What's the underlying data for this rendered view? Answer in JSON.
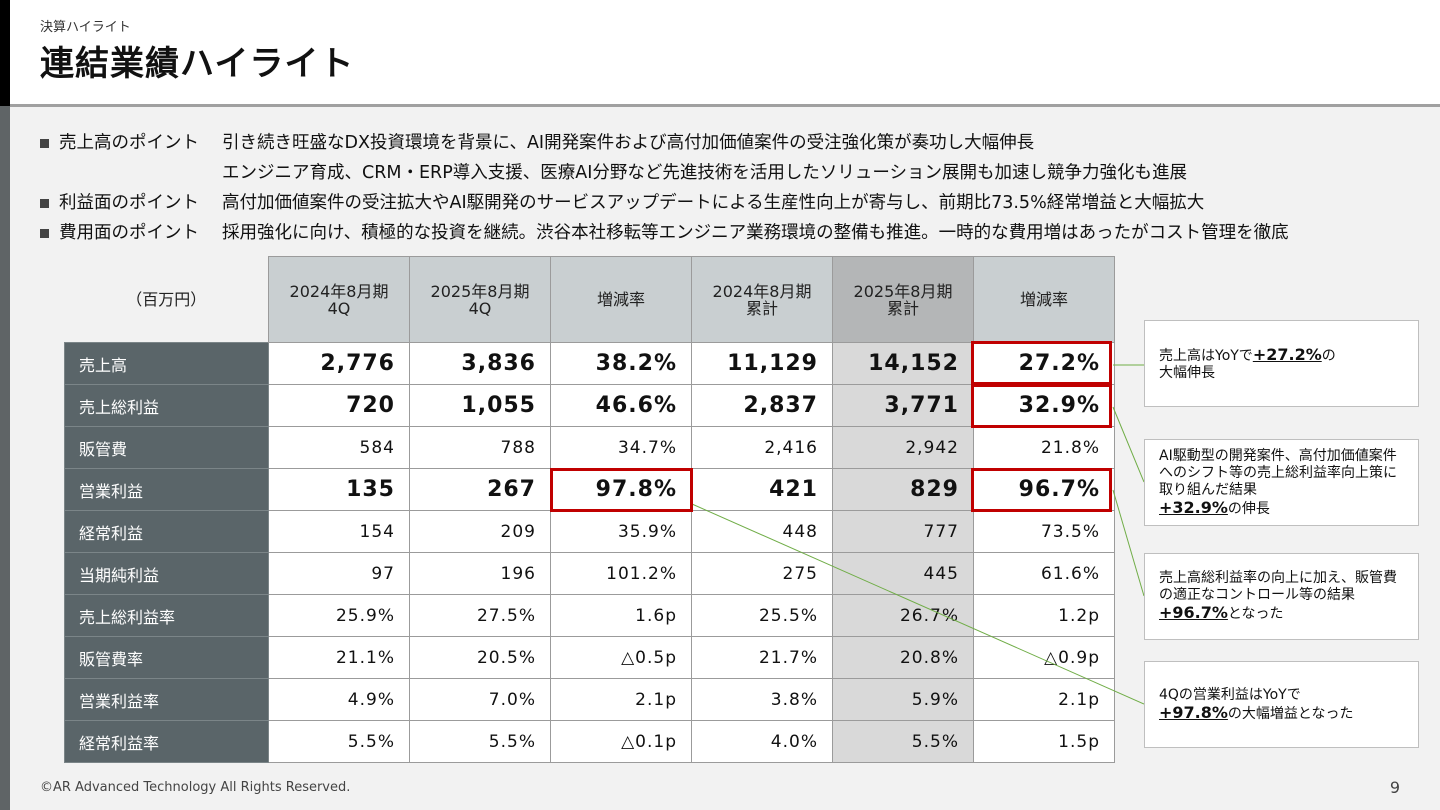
{
  "header": {
    "kicker": "決算ハイライト",
    "title": "連結業績ハイライト"
  },
  "points": [
    {
      "label": "売上高のポイント",
      "lines": [
        "引き続き旺盛なDX投資環境を背景に、AI開発案件および高付加価値案件の受注強化策が奏功し大幅伸長",
        "エンジニア育成、CRM・ERP導入支援、医療AI分野など先進技術を活用したソリューション展開も加速し競争力強化も進展"
      ]
    },
    {
      "label": "利益面のポイント",
      "lines": [
        "高付加価値案件の受注拡大やAI駆開発のサービスアップデートによる生産性向上が寄与し、前期比73.5%経常増益と大幅拡大"
      ]
    },
    {
      "label": "費用面のポイント",
      "lines": [
        "採用強化に向け、積極的な投資を継続。渋谷本社移転等エンジニア業務環境の整備も推進。一時的な費用増はあったがコスト管理を徹底"
      ]
    }
  ],
  "table": {
    "unit": "（百万円）",
    "columns": [
      {
        "line1": "2024年8月期",
        "line2": "4Q"
      },
      {
        "line1": "2025年8月期",
        "line2": "4Q"
      },
      {
        "line1": "増減率",
        "line2": ""
      },
      {
        "line1": "2024年8月期",
        "line2": "累計"
      },
      {
        "line1": "2025年8月期",
        "line2": "累計"
      },
      {
        "line1": "増減率",
        "line2": ""
      }
    ],
    "rows": [
      {
        "label": "売上高",
        "values": [
          "2,776",
          "3,836",
          "38.2%",
          "11,129",
          "14,152",
          "27.2%"
        ]
      },
      {
        "label": "売上総利益",
        "values": [
          "720",
          "1,055",
          "46.6%",
          "2,837",
          "3,771",
          "32.9%"
        ]
      },
      {
        "label": "販管費",
        "values": [
          "584",
          "788",
          "34.7%",
          "2,416",
          "2,942",
          "21.8%"
        ]
      },
      {
        "label": "営業利益",
        "values": [
          "135",
          "267",
          "97.8%",
          "421",
          "829",
          "96.7%"
        ]
      },
      {
        "label": "経常利益",
        "values": [
          "154",
          "209",
          "35.9%",
          "448",
          "777",
          "73.5%"
        ]
      },
      {
        "label": "当期純利益",
        "values": [
          "97",
          "196",
          "101.2%",
          "275",
          "445",
          "61.6%"
        ]
      },
      {
        "label": "売上総利益率",
        "values": [
          "25.9%",
          "27.5%",
          "1.6p",
          "25.5%",
          "26.7%",
          "1.2p"
        ]
      },
      {
        "label": "販管費率",
        "values": [
          "21.1%",
          "20.5%",
          "△0.5p",
          "21.7%",
          "20.8%",
          "△0.9p"
        ]
      },
      {
        "label": "営業利益率",
        "values": [
          "4.9%",
          "7.0%",
          "2.1p",
          "3.8%",
          "5.9%",
          "2.1p"
        ]
      },
      {
        "label": "経常利益率",
        "values": [
          "5.5%",
          "5.5%",
          "△0.1p",
          "4.0%",
          "5.5%",
          "1.5p"
        ]
      }
    ]
  },
  "notes": [
    {
      "pre": "売上高はYoYで",
      "em": "+27.2%",
      "post": "の",
      "line2": "大幅伸長"
    },
    {
      "pre": "AI駆動型の開発案件、高付加価値案件へのシフト等の売上総利益率向上策に取り組んだ結果",
      "em": "+32.9%",
      "post": "の伸長"
    },
    {
      "pre": "売上高総利益率の向上に加え、販管費の適正なコントロール等の結果",
      "em": "+96.7%",
      "post": "となった"
    },
    {
      "pre": "4Qの営業利益はYoYで",
      "em": "+97.8%",
      "post": "の大幅増益となった"
    }
  ],
  "colors": {
    "accent_red": "#c00000",
    "row_label_bg": "#5a6569",
    "header_bg": "#c9cfd1",
    "connector_green": "#70ad47"
  },
  "footer": {
    "copyright": "©AR Advanced Technology All Rights Reserved.",
    "page": "9"
  }
}
